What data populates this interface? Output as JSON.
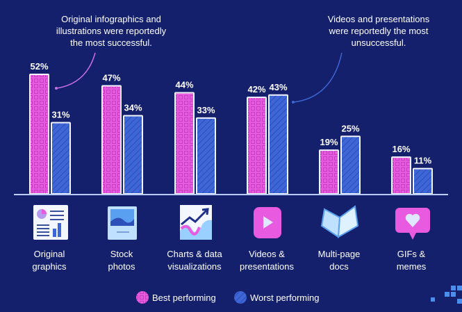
{
  "chart_data": {
    "type": "bar",
    "categories": [
      "Original\ngraphics",
      "Stock\nphotos",
      "Charts & data\nvisualizations",
      "Videos &\npresentations",
      "Multi-page\ndocs",
      "GIFs &\nmemes"
    ],
    "series": [
      {
        "name": "Best performing",
        "values": [
          52,
          47,
          44,
          42,
          19,
          16
        ],
        "color": "#e85ae0"
      },
      {
        "name": "Worst performing",
        "values": [
          31,
          34,
          33,
          43,
          25,
          11
        ],
        "color": "#3e66d6"
      }
    ],
    "value_suffix": "%",
    "ylim": [
      0,
      55
    ],
    "grid": false,
    "legend": "bottom",
    "annotations": [
      {
        "text": "Original infographics and\nillustrations were reportedly\nthe most successful.",
        "color": "#c86ee6"
      },
      {
        "text": "Videos and presentations\nwere reportedly the most\nunsuccessful.",
        "color": "#3e66d6"
      }
    ],
    "icons": [
      "infographic-icon",
      "stock-photo-icon",
      "chart-icon",
      "video-play-icon",
      "open-book-icon",
      "heart-message-icon"
    ]
  },
  "colors": {
    "background": "#14206b",
    "baseline": "#bcd0ff"
  }
}
